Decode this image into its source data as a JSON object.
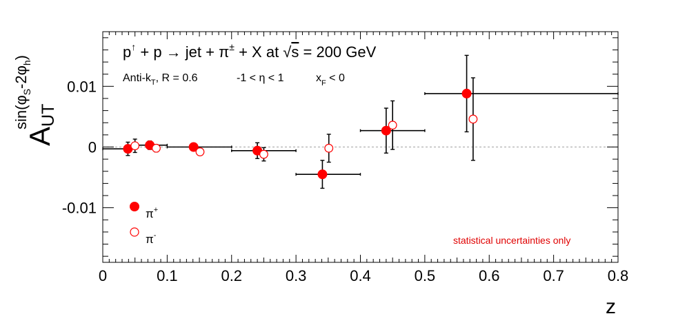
{
  "chart_data": {
    "type": "scatter",
    "title": "p↑ + p → jet + π± + X at √s = 200 GeV",
    "title_parts": {
      "p": "p",
      "p_sup": "↑",
      "rest1": " + p → jet + π",
      "pi_sup": "±",
      "rest2": " + X at ",
      "sqrt": "√",
      "s": "s",
      "rest3": " = 200 GeV"
    },
    "subtitle_parts": {
      "anti": "Anti-k",
      "anti_sub": "T",
      "radius": ", R = 0.6",
      "eta": "-1 <  η < 1",
      "xf": "x",
      "xf_sub": "F",
      "xf_rest": " < 0"
    },
    "xlabel": "z",
    "ylabel_parts": {
      "A": "A",
      "A_sub": "UT",
      "sup_open": "sin(φ",
      "sup_S": "S",
      "sup_mid": "-2φ",
      "sup_h": "h",
      "sup_close": ")"
    },
    "xlim": [
      0,
      0.8
    ],
    "ylim": [
      -0.019,
      0.019
    ],
    "x_ticks": [
      "0",
      "0.1",
      "0.2",
      "0.3",
      "0.4",
      "0.5",
      "0.6",
      "0.7",
      "0.8"
    ],
    "y_ticks": [
      "-0.01",
      "0",
      "0.01"
    ],
    "zero_line": "dashed-grey",
    "annotation": "statistical uncertainties only",
    "legend_position": "bottom-left",
    "series": [
      {
        "name": "π",
        "name_sup": "+",
        "marker": "filled-circle",
        "color": "#ff0000",
        "points": [
          {
            "x": 0.039,
            "y": -0.0003,
            "xlo": 0.0,
            "xhi": 0.05,
            "yerr": 0.0011
          },
          {
            "x": 0.073,
            "y": 0.0003,
            "xlo": 0.05,
            "xhi": 0.1,
            "yerr": 0.0007
          },
          {
            "x": 0.141,
            "y": 0.0,
            "xlo": 0.1,
            "xhi": 0.2,
            "yerr": 0.0004
          },
          {
            "x": 0.24,
            "y": -0.0006,
            "xlo": 0.2,
            "xhi": 0.3,
            "yerr": 0.0013
          },
          {
            "x": 0.341,
            "y": -0.0045,
            "xlo": 0.3,
            "xhi": 0.4,
            "yerr": 0.0023
          },
          {
            "x": 0.44,
            "y": 0.0027,
            "xlo": 0.4,
            "xhi": 0.5,
            "yerr": 0.0037
          },
          {
            "x": 0.565,
            "y": 0.0088,
            "xlo": 0.5,
            "xhi": 0.8,
            "yerr": 0.0063
          }
        ]
      },
      {
        "name": "π",
        "name_sup": "-",
        "marker": "open-circle",
        "color": "#ff0000",
        "points": [
          {
            "x": 0.05,
            "y": 0.0002,
            "yerr": 0.0011
          },
          {
            "x": 0.083,
            "y": -0.0002,
            "yerr": 0.0006
          },
          {
            "x": 0.151,
            "y": -0.0008,
            "yerr": 0.0005
          },
          {
            "x": 0.25,
            "y": -0.0012,
            "yerr": 0.0011
          },
          {
            "x": 0.351,
            "y": -0.0002,
            "yerr": 0.0023
          },
          {
            "x": 0.45,
            "y": 0.0036,
            "yerr": 0.004
          },
          {
            "x": 0.575,
            "y": 0.0046,
            "yerr": 0.0068
          }
        ]
      }
    ]
  }
}
